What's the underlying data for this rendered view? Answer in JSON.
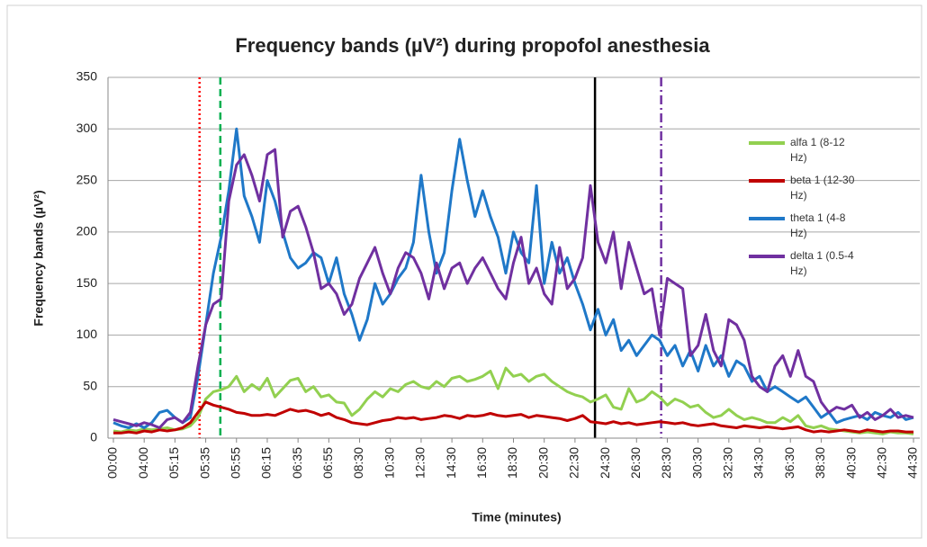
{
  "chart_data": {
    "type": "line",
    "title": "Frequency bands (µV²) during propofol anesthesia",
    "xlabel": "Time (minutes)",
    "ylabel": "Frequency bands  (µV²)",
    "categories": [
      "00:00",
      null,
      null,
      null,
      "04:00",
      null,
      null,
      null,
      "05:15",
      null,
      null,
      null,
      "05:35",
      null,
      null,
      null,
      "05:55",
      null,
      null,
      null,
      "06:15",
      null,
      null,
      null,
      "06:35",
      null,
      null,
      null,
      "06:55",
      null,
      null,
      null,
      "08:30",
      null,
      null,
      null,
      "10:30",
      null,
      null,
      null,
      "12:30",
      null,
      null,
      null,
      "14:30",
      null,
      null,
      null,
      "16:30",
      null,
      null,
      null,
      "18:30",
      null,
      null,
      null,
      "20:30",
      null,
      null,
      null,
      "22:30",
      null,
      null,
      null,
      "24:30",
      null,
      null,
      null,
      "26:30",
      null,
      null,
      null,
      "28:30",
      null,
      null,
      null,
      "30:30",
      null,
      null,
      null,
      "32:30",
      null,
      null,
      null,
      "34:30",
      null,
      null,
      null,
      "36:30",
      null,
      null,
      null,
      "38:30",
      null,
      null,
      null,
      "40:30",
      null,
      null,
      null,
      "42:30",
      null,
      null,
      null,
      "44:30"
    ],
    "series": [
      {
        "name": "alfa 1 (8-12 Hz)",
        "color": "#92d050",
        "values": [
          7,
          6,
          8,
          7,
          9,
          8,
          9,
          10,
          8,
          9,
          12,
          20,
          38,
          45,
          47,
          50,
          60,
          45,
          52,
          47,
          58,
          40,
          48,
          56,
          58,
          45,
          50,
          40,
          42,
          35,
          34,
          22,
          28,
          38,
          45,
          40,
          48,
          45,
          52,
          55,
          50,
          48,
          55,
          50,
          58,
          60,
          55,
          57,
          60,
          65,
          48,
          68,
          60,
          62,
          55,
          60,
          62,
          55,
          50,
          45,
          42,
          40,
          35,
          38,
          42,
          30,
          28,
          48,
          35,
          38,
          45,
          40,
          32,
          38,
          35,
          30,
          32,
          25,
          20,
          22,
          28,
          22,
          18,
          20,
          18,
          15,
          15,
          20,
          16,
          22,
          12,
          10,
          12,
          9,
          8,
          7,
          6,
          5,
          6,
          5,
          4,
          6,
          5,
          5,
          4
        ]
      },
      {
        "name": "beta 1 (12-30 Hz)",
        "color": "#c00000",
        "values": [
          5,
          5,
          6,
          5,
          7,
          6,
          8,
          7,
          8,
          10,
          15,
          25,
          35,
          32,
          30,
          28,
          25,
          24,
          22,
          22,
          23,
          22,
          25,
          28,
          26,
          27,
          25,
          22,
          24,
          20,
          18,
          15,
          14,
          13,
          15,
          17,
          18,
          20,
          19,
          20,
          18,
          19,
          20,
          22,
          21,
          19,
          22,
          21,
          22,
          24,
          22,
          21,
          22,
          23,
          20,
          22,
          21,
          20,
          19,
          17,
          19,
          22,
          16,
          15,
          14,
          16,
          14,
          15,
          13,
          14,
          15,
          16,
          15,
          14,
          15,
          13,
          12,
          13,
          14,
          12,
          11,
          10,
          12,
          11,
          10,
          11,
          10,
          9,
          10,
          11,
          8,
          6,
          7,
          6,
          7,
          8,
          7,
          6,
          8,
          7,
          6,
          7,
          7,
          6,
          6
        ]
      },
      {
        "name": "theta 1 (4-8 Hz)",
        "color": "#1f78c8",
        "values": [
          15,
          12,
          10,
          14,
          10,
          15,
          25,
          27,
          20,
          15,
          20,
          60,
          110,
          160,
          195,
          240,
          300,
          235,
          215,
          190,
          250,
          230,
          200,
          175,
          165,
          170,
          180,
          175,
          150,
          175,
          140,
          120,
          95,
          115,
          150,
          130,
          140,
          155,
          165,
          190,
          255,
          200,
          160,
          180,
          240,
          290,
          250,
          215,
          240,
          215,
          195,
          160,
          200,
          180,
          170,
          245,
          150,
          190,
          160,
          175,
          150,
          130,
          105,
          125,
          100,
          115,
          85,
          95,
          80,
          90,
          100,
          95,
          80,
          90,
          70,
          85,
          65,
          90,
          70,
          80,
          60,
          75,
          70,
          55,
          60,
          45,
          50,
          45,
          40,
          35,
          40,
          30,
          20,
          25,
          15,
          18,
          20,
          22,
          18,
          25,
          22,
          20,
          25,
          18,
          20
        ]
      },
      {
        "name": "delta 1 (0.5-4 Hz)",
        "color": "#7030a0",
        "values": [
          18,
          16,
          14,
          12,
          15,
          13,
          10,
          18,
          20,
          15,
          25,
          70,
          110,
          130,
          135,
          230,
          265,
          275,
          255,
          230,
          275,
          280,
          195,
          220,
          225,
          205,
          180,
          145,
          150,
          140,
          120,
          130,
          155,
          170,
          185,
          160,
          140,
          165,
          180,
          175,
          160,
          135,
          170,
          145,
          165,
          170,
          150,
          165,
          175,
          160,
          145,
          135,
          170,
          195,
          150,
          165,
          140,
          130,
          185,
          145,
          155,
          175,
          245,
          190,
          170,
          200,
          145,
          190,
          165,
          140,
          145,
          100,
          155,
          150,
          145,
          80,
          90,
          120,
          85,
          70,
          115,
          110,
          95,
          60,
          50,
          45,
          70,
          80,
          60,
          85,
          60,
          55,
          35,
          25,
          30,
          28,
          32,
          20,
          25,
          18,
          22,
          28,
          20,
          22,
          20
        ]
      }
    ],
    "vertical_lines": [
      {
        "x": 11.2,
        "color": "#ff0000",
        "style": "dotted"
      },
      {
        "x": 13.9,
        "color": "#00b050",
        "style": "dashed"
      },
      {
        "x": 62.6,
        "color": "#000000",
        "style": "solid"
      },
      {
        "x": 71.2,
        "color": "#7030a0",
        "style": "dashdot"
      }
    ],
    "ylim": [
      0,
      350
    ],
    "yticks": [
      0,
      50,
      100,
      150,
      200,
      250,
      300,
      350
    ],
    "grid": true
  }
}
